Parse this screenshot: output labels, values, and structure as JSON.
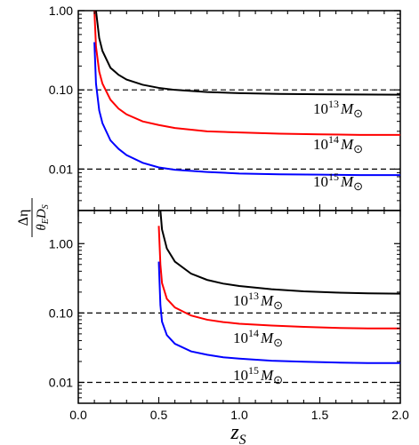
{
  "chart_data": [
    {
      "type": "line",
      "panel": "top",
      "x_range": [
        0.0,
        2.0
      ],
      "y_scale": "log",
      "y_range": [
        0.003,
        1.0
      ],
      "y_ticks": [
        "1.00",
        "0.10",
        "0.01"
      ],
      "y_tick_values": [
        1.0,
        0.1,
        0.01
      ],
      "reference_lines": [
        0.1,
        0.01
      ],
      "series": [
        {
          "name": "10^13 M_sun",
          "label_mantissa": "10",
          "label_exp": "13",
          "label_unit": "M",
          "color": "#000000",
          "x": [
            0.11,
            0.13,
            0.15,
            0.2,
            0.25,
            0.3,
            0.4,
            0.5,
            0.6,
            0.8,
            1.0,
            1.25,
            1.5,
            1.75,
            2.0
          ],
          "y": [
            1.0,
            0.45,
            0.31,
            0.19,
            0.155,
            0.135,
            0.116,
            0.106,
            0.1,
            0.094,
            0.091,
            0.089,
            0.088,
            0.0875,
            0.087
          ]
        },
        {
          "name": "10^14 M_sun",
          "label_mantissa": "10",
          "label_exp": "14",
          "label_unit": "M",
          "color": "#ff0000",
          "x": [
            0.1,
            0.11,
            0.13,
            0.15,
            0.2,
            0.25,
            0.3,
            0.4,
            0.5,
            0.6,
            0.8,
            1.0,
            1.25,
            1.5,
            1.75,
            2.0
          ],
          "y": [
            1.0,
            0.35,
            0.17,
            0.12,
            0.075,
            0.058,
            0.049,
            0.04,
            0.036,
            0.033,
            0.03,
            0.029,
            0.028,
            0.0275,
            0.027,
            0.027
          ]
        },
        {
          "name": "10^15 M_sun",
          "label_mantissa": "10",
          "label_exp": "15",
          "label_unit": "M",
          "color": "#0000ff",
          "x": [
            0.1,
            0.11,
            0.13,
            0.15,
            0.2,
            0.25,
            0.3,
            0.4,
            0.5,
            0.6,
            0.8,
            1.0,
            1.25,
            1.5,
            1.75,
            2.0
          ],
          "y": [
            0.4,
            0.12,
            0.055,
            0.038,
            0.023,
            0.018,
            0.015,
            0.012,
            0.0105,
            0.0098,
            0.0092,
            0.0088,
            0.0086,
            0.0085,
            0.0084,
            0.0084
          ]
        }
      ]
    },
    {
      "type": "line",
      "panel": "bottom",
      "x_range": [
        0.0,
        2.0
      ],
      "y_scale": "log",
      "y_range": [
        0.005,
        3.0
      ],
      "x_ticks": [
        "0.0",
        "0.5",
        "1.0",
        "1.5",
        "2.0"
      ],
      "x_tick_values": [
        0.0,
        0.5,
        1.0,
        1.5,
        2.0
      ],
      "y_ticks": [
        "1.00",
        "0.10",
        "0.01"
      ],
      "y_tick_values": [
        1.0,
        0.1,
        0.01
      ],
      "reference_lines": [
        0.1,
        0.01
      ],
      "series": [
        {
          "name": "10^13 M_sun",
          "label_mantissa": "10",
          "label_exp": "13",
          "label_unit": "M",
          "color": "#000000",
          "x": [
            0.51,
            0.52,
            0.55,
            0.6,
            0.7,
            0.8,
            0.9,
            1.0,
            1.2,
            1.4,
            1.6,
            1.8,
            2.0
          ],
          "y": [
            3.0,
            1.6,
            0.85,
            0.55,
            0.37,
            0.3,
            0.265,
            0.245,
            0.22,
            0.205,
            0.197,
            0.192,
            0.19
          ]
        },
        {
          "name": "10^14 M_sun",
          "label_mantissa": "10",
          "label_exp": "14",
          "label_unit": "M",
          "color": "#ff0000",
          "x": [
            0.5,
            0.51,
            0.52,
            0.55,
            0.6,
            0.7,
            0.8,
            0.9,
            1.0,
            1.2,
            1.4,
            1.6,
            1.8,
            2.0
          ],
          "y": [
            1.8,
            0.5,
            0.27,
            0.16,
            0.12,
            0.092,
            0.08,
            0.074,
            0.07,
            0.066,
            0.063,
            0.061,
            0.06,
            0.06
          ]
        },
        {
          "name": "10^15 M_sun",
          "label_mantissa": "10",
          "label_exp": "15",
          "label_unit": "M",
          "color": "#0000ff",
          "x": [
            0.5,
            0.51,
            0.52,
            0.55,
            0.6,
            0.7,
            0.8,
            0.9,
            1.0,
            1.2,
            1.4,
            1.6,
            1.8,
            2.0
          ],
          "y": [
            0.55,
            0.13,
            0.075,
            0.048,
            0.036,
            0.028,
            0.025,
            0.023,
            0.022,
            0.0205,
            0.0198,
            0.0193,
            0.019,
            0.019
          ]
        }
      ]
    }
  ],
  "axis_labels": {
    "x_base": "z",
    "x_sub": "S",
    "y_numerator": "Δη",
    "y_denominator_theta": "θ",
    "y_denominator_theta_sub": "E",
    "y_denominator_D": "D",
    "y_denominator_D_sub": "S"
  },
  "sun_symbol": "⊙"
}
